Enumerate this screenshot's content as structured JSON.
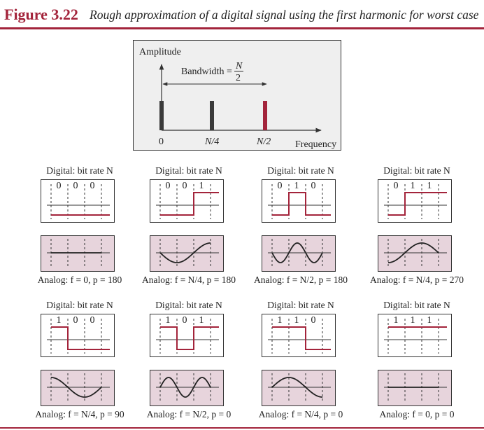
{
  "header": {
    "figure_label": "Figure 3.22",
    "caption": "Rough approximation of a digital signal using the first harmonic for worst case"
  },
  "spectrum": {
    "amplitude_label": "Amplitude",
    "bandwidth_label": "Bandwidth =",
    "bandwidth_num": "N",
    "bandwidth_den": "2",
    "frequency_label": "Frequency",
    "ticks": [
      "0",
      "N/4",
      "N/2"
    ],
    "bar_colors": [
      "#3a3a3a",
      "#3a3a3a",
      "#a3243b"
    ]
  },
  "panels": [
    {
      "digital_label": "Digital: bit rate N",
      "bits": [
        "0",
        "0",
        "0"
      ],
      "analog_f": "0",
      "analog_p": "180",
      "analog_label": "Analog: f = 0, p = 180"
    },
    {
      "digital_label": "Digital: bit rate N",
      "bits": [
        "0",
        "0",
        "1"
      ],
      "analog_f": "N/4",
      "analog_p": "180",
      "analog_label": "Analog: f = N/4, p = 180"
    },
    {
      "digital_label": "Digital: bit rate N",
      "bits": [
        "0",
        "1",
        "0"
      ],
      "analog_f": "N/2",
      "analog_p": "180",
      "analog_label": "Analog: f = N/2, p = 180"
    },
    {
      "digital_label": "Digital: bit rate N",
      "bits": [
        "0",
        "1",
        "1"
      ],
      "analog_f": "N/4",
      "analog_p": "270",
      "analog_label": "Analog: f = N/4, p = 270"
    },
    {
      "digital_label": "Digital: bit rate N",
      "bits": [
        "1",
        "0",
        "0"
      ],
      "analog_f": "N/4",
      "analog_p": "90",
      "analog_label": "Analog: f = N/4, p = 90"
    },
    {
      "digital_label": "Digital: bit rate N",
      "bits": [
        "1",
        "0",
        "1"
      ],
      "analog_f": "N/2",
      "analog_p": "0",
      "analog_label": "Analog: f = N/2, p = 0"
    },
    {
      "digital_label": "Digital: bit rate N",
      "bits": [
        "1",
        "1",
        "0"
      ],
      "analog_f": "N/4",
      "analog_p": "0",
      "analog_label": "Analog: f = N/4, p = 0"
    },
    {
      "digital_label": "Digital: bit rate N",
      "bits": [
        "1",
        "1",
        "1"
      ],
      "analog_f": "0",
      "analog_p": "0",
      "analog_label": "Analog: f = 0, p = 0"
    }
  ],
  "colors": {
    "accent": "#a3243b",
    "analog_bg": "#e7d4dc",
    "spectrum_bg": "#efefef"
  }
}
